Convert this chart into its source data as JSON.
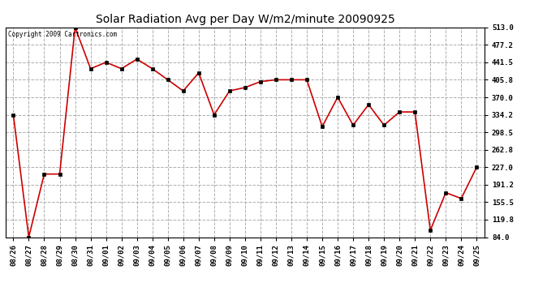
{
  "title": "Solar Radiation Avg per Day W/m2/minute 20090925",
  "copyright_text": "Copyright 2009 Cartronics.com",
  "dates": [
    "08/26",
    "08/27",
    "08/28",
    "08/29",
    "08/30",
    "08/31",
    "09/01",
    "09/02",
    "09/03",
    "09/04",
    "09/05",
    "09/06",
    "09/07",
    "09/08",
    "09/09",
    "09/10",
    "09/11",
    "09/12",
    "09/13",
    "09/14",
    "09/15",
    "09/16",
    "09/17",
    "09/18",
    "09/19",
    "09/20",
    "09/21",
    "09/22",
    "09/23",
    "09/24",
    "09/25"
  ],
  "values": [
    334.2,
    84.0,
    213.0,
    213.0,
    513.0,
    428.5,
    441.5,
    428.5,
    448.0,
    428.5,
    405.8,
    383.0,
    420.0,
    334.2,
    383.0,
    390.0,
    402.0,
    405.8,
    405.8,
    405.8,
    310.0,
    370.0,
    313.0,
    355.0,
    313.0,
    340.0,
    340.0,
    98.0,
    175.0,
    163.0,
    227.0
  ],
  "line_color": "#cc0000",
  "marker_color": "#000000",
  "background_color": "#ffffff",
  "grid_color": "#999999",
  "ytick_labels": [
    513.0,
    477.2,
    441.5,
    405.8,
    370.0,
    334.2,
    298.5,
    262.8,
    227.0,
    191.2,
    155.5,
    119.8,
    84.0
  ],
  "ylim": [
    84.0,
    513.0
  ],
  "title_fontsize": 10,
  "tick_fontsize": 6.5,
  "copyright_fontsize": 5.5
}
